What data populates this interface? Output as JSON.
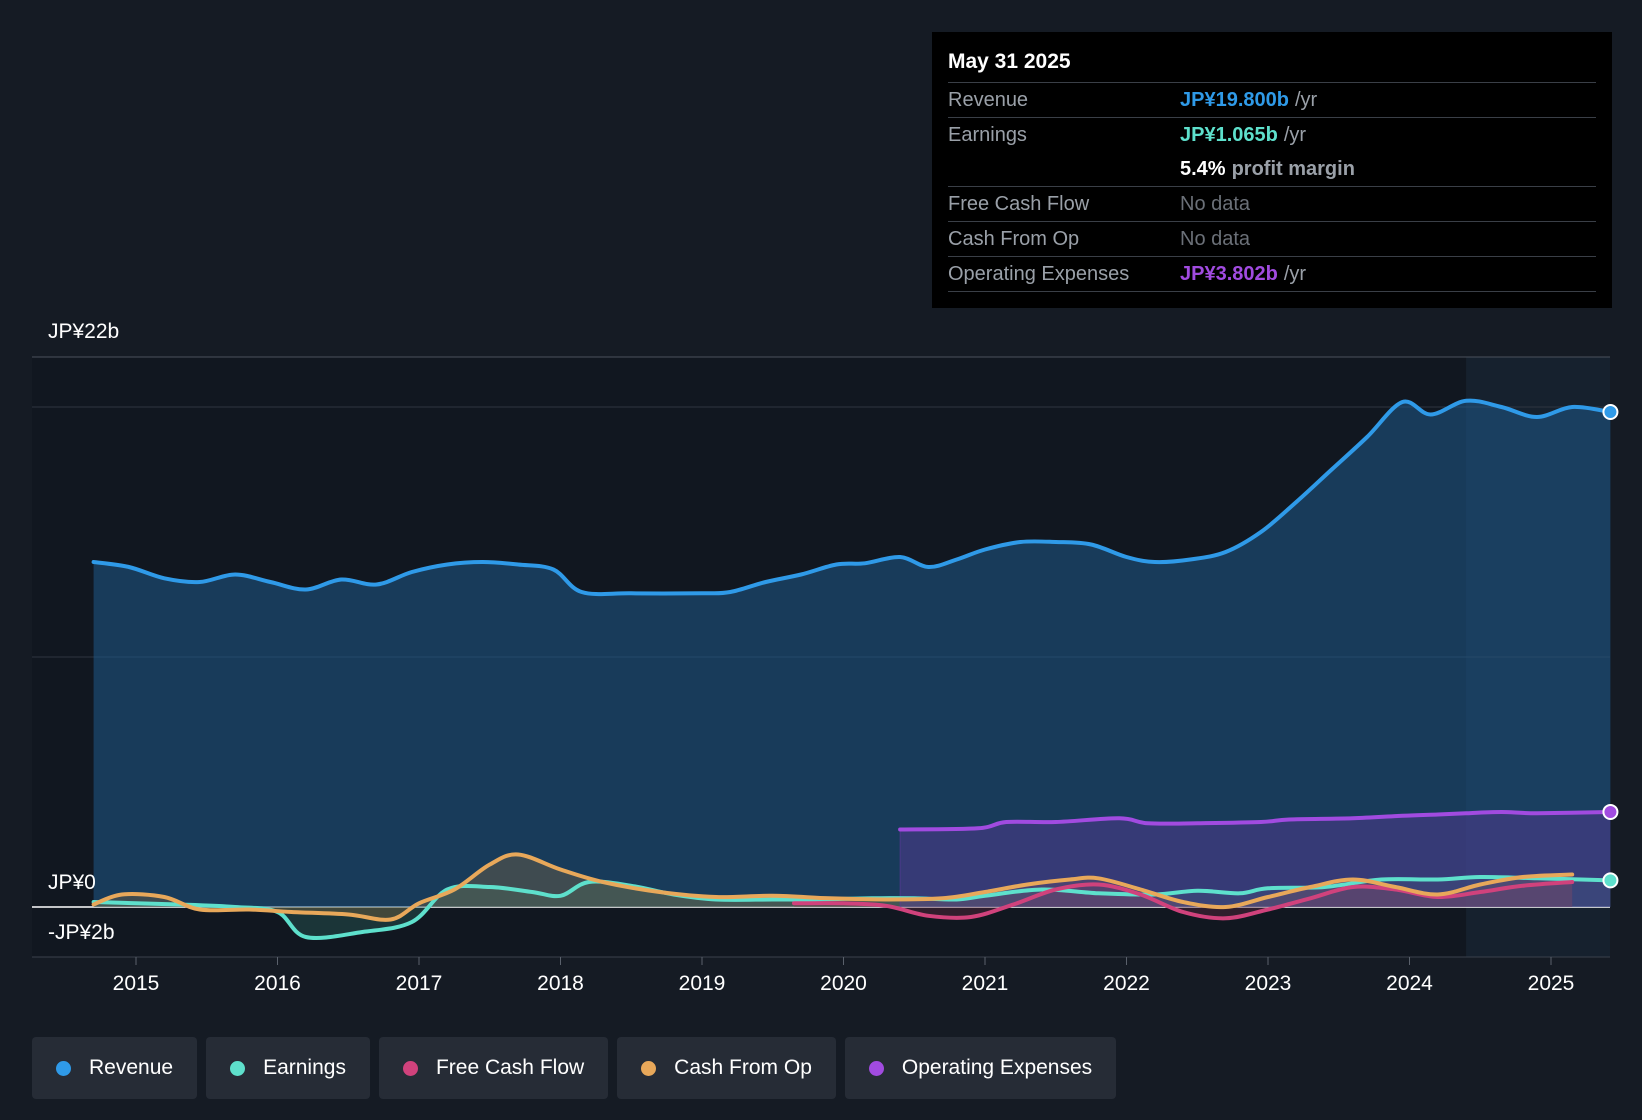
{
  "chart_data": {
    "type": "line",
    "title": "",
    "xlabel": "",
    "ylabel": "",
    "y_unit": "JP¥b",
    "ylim": [
      -2,
      22
    ],
    "x_ticks": [
      "2015",
      "2016",
      "2017",
      "2018",
      "2019",
      "2020",
      "2021",
      "2022",
      "2023",
      "2024",
      "2025"
    ],
    "y_tick_labels": {
      "top": "JP¥22b",
      "zero": "JP¥0",
      "bottom": "-JP¥2b"
    },
    "past_data_region_start": 2024.4,
    "series": [
      {
        "name": "Revenue",
        "key": "revenue",
        "color": "#2f9ae8",
        "x": [
          2014.7,
          2014.95,
          2015.2,
          2015.45,
          2015.7,
          2015.95,
          2016.2,
          2016.45,
          2016.7,
          2016.95,
          2017.2,
          2017.45,
          2017.7,
          2017.95,
          2018.15,
          2018.5,
          2019.0,
          2019.2,
          2019.45,
          2019.7,
          2019.95,
          2020.15,
          2020.4,
          2020.6,
          2020.8,
          2021.0,
          2021.25,
          2021.5,
          2021.75,
          2022.0,
          2022.2,
          2022.45,
          2022.7,
          2022.95,
          2023.2,
          2023.45,
          2023.7,
          2023.95,
          2024.15,
          2024.4,
          2024.65,
          2024.9,
          2025.15,
          2025.42
        ],
        "values": [
          13.8,
          13.6,
          13.15,
          13.0,
          13.3,
          13.0,
          12.7,
          13.1,
          12.9,
          13.4,
          13.7,
          13.8,
          13.7,
          13.5,
          12.6,
          12.55,
          12.55,
          12.6,
          13.0,
          13.3,
          13.7,
          13.75,
          14.0,
          13.6,
          13.9,
          14.3,
          14.6,
          14.6,
          14.5,
          14.0,
          13.8,
          13.9,
          14.2,
          15.0,
          16.2,
          17.5,
          18.8,
          20.2,
          19.7,
          20.25,
          20.0,
          19.6,
          20.0,
          19.8
        ]
      },
      {
        "name": "Earnings",
        "key": "earnings",
        "color": "#5ee0cc",
        "x": [
          2014.7,
          2015.0,
          2015.3,
          2015.7,
          2016.0,
          2016.2,
          2016.6,
          2016.95,
          2017.2,
          2017.5,
          2017.8,
          2018.0,
          2018.2,
          2018.5,
          2018.8,
          2019.1,
          2019.5,
          2019.8,
          2020.2,
          2020.5,
          2020.8,
          2021.0,
          2021.4,
          2021.8,
          2022.2,
          2022.5,
          2022.8,
          2023.0,
          2023.4,
          2023.8,
          2024.2,
          2024.5,
          2024.9,
          2025.42
        ],
        "values": [
          0.2,
          0.15,
          0.1,
          0.0,
          -0.2,
          -1.2,
          -1.0,
          -0.6,
          0.7,
          0.8,
          0.6,
          0.45,
          1.0,
          0.85,
          0.5,
          0.3,
          0.3,
          0.3,
          0.35,
          0.35,
          0.3,
          0.45,
          0.7,
          0.55,
          0.5,
          0.65,
          0.55,
          0.75,
          0.8,
          1.1,
          1.1,
          1.2,
          1.15,
          1.065
        ]
      },
      {
        "name": "Free Cash Flow",
        "key": "fcf",
        "color": "#d0427c",
        "x": [
          2019.65,
          2020.0,
          2020.3,
          2020.6,
          2020.9,
          2021.2,
          2021.5,
          2021.8,
          2022.1,
          2022.4,
          2022.7,
          2023.0,
          2023.3,
          2023.6,
          2023.9,
          2024.2,
          2024.5,
          2024.8,
          2025.15
        ],
        "values": [
          0.15,
          0.15,
          0.05,
          -0.35,
          -0.4,
          0.1,
          0.7,
          0.9,
          0.5,
          -0.2,
          -0.45,
          -0.1,
          0.35,
          0.8,
          0.7,
          0.4,
          0.6,
          0.85,
          1.0
        ]
      },
      {
        "name": "Cash From Op",
        "key": "cfo",
        "color": "#e8a85a",
        "x": [
          2014.7,
          2014.9,
          2015.2,
          2015.45,
          2015.8,
          2016.1,
          2016.5,
          2016.8,
          2017.0,
          2017.25,
          2017.5,
          2017.7,
          2018.0,
          2018.3,
          2018.7,
          2019.1,
          2019.5,
          2019.9,
          2020.3,
          2020.7,
          2021.0,
          2021.3,
          2021.6,
          2021.8,
          2022.1,
          2022.4,
          2022.7,
          2023.0,
          2023.3,
          2023.6,
          2023.9,
          2024.2,
          2024.5,
          2024.8,
          2025.15
        ],
        "values": [
          0.1,
          0.5,
          0.4,
          -0.1,
          -0.1,
          -0.2,
          -0.3,
          -0.5,
          0.15,
          0.7,
          1.7,
          2.1,
          1.5,
          1.0,
          0.6,
          0.4,
          0.45,
          0.35,
          0.3,
          0.35,
          0.6,
          0.9,
          1.1,
          1.15,
          0.7,
          0.2,
          0.0,
          0.4,
          0.8,
          1.1,
          0.8,
          0.5,
          0.9,
          1.2,
          1.3
        ]
      },
      {
        "name": "Operating Expenses",
        "key": "opex",
        "color": "#a14be0",
        "x": [
          2020.4,
          2020.95,
          2021.15,
          2021.5,
          2021.95,
          2022.15,
          2022.5,
          2022.95,
          2023.15,
          2023.6,
          2023.95,
          2024.2,
          2024.4,
          2024.65,
          2024.9,
          2025.42
        ],
        "values": [
          3.1,
          3.15,
          3.4,
          3.4,
          3.55,
          3.35,
          3.35,
          3.4,
          3.5,
          3.55,
          3.65,
          3.7,
          3.75,
          3.8,
          3.75,
          3.802
        ]
      }
    ]
  },
  "tooltip": {
    "date": "May 31 2025",
    "revenue_label": "Revenue",
    "revenue_value": "JP¥19.800b",
    "revenue_unit": "/yr",
    "earnings_label": "Earnings",
    "earnings_value": "JP¥1.065b",
    "earnings_unit": "/yr",
    "margin_value": "5.4%",
    "margin_label": "profit margin",
    "fcf_label": "Free Cash Flow",
    "fcf_value": "No data",
    "cfo_label": "Cash From Op",
    "cfo_value": "No data",
    "opex_label": "Operating Expenses",
    "opex_value": "JP¥3.802b",
    "opex_unit": "/yr"
  },
  "legend": [
    {
      "label": "Revenue",
      "color": "#2f9ae8"
    },
    {
      "label": "Earnings",
      "color": "#5ee0cc"
    },
    {
      "label": "Free Cash Flow",
      "color": "#d0427c"
    },
    {
      "label": "Cash From Op",
      "color": "#e8a85a"
    },
    {
      "label": "Operating Expenses",
      "color": "#a14be0"
    }
  ]
}
